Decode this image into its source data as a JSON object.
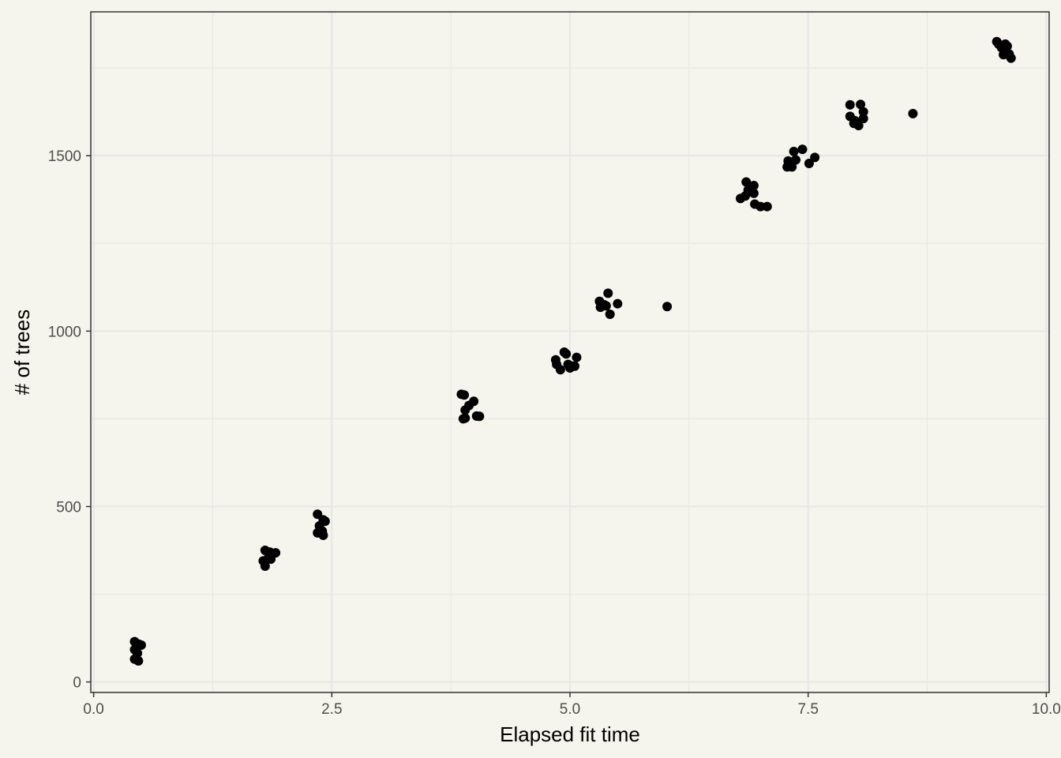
{
  "chart_data": {
    "type": "scatter",
    "title": "",
    "xlabel": "Elapsed fit time",
    "ylabel": "# of trees",
    "xlim": [
      -0.03,
      10.03
    ],
    "ylim": [
      -30,
      1910
    ],
    "x_ticks": [
      0.0,
      2.5,
      5.0,
      7.5,
      10.0
    ],
    "x_tick_labels": [
      "0.0",
      "2.5",
      "5.0",
      "7.5",
      "10.0"
    ],
    "y_ticks": [
      0,
      500,
      1000,
      1500
    ],
    "y_tick_labels": [
      "0",
      "500",
      "1000",
      "1500"
    ],
    "grid": true,
    "legend": "none",
    "colors": {
      "background": "#f5f5ed",
      "panel": "#f5f5ed",
      "grid": "#e6e6e6",
      "points": "#000000",
      "border": "#333333"
    },
    "series": [
      {
        "points": [
          [
            0.43,
            115
          ],
          [
            0.47,
            108
          ],
          [
            0.5,
            105
          ],
          [
            0.43,
            92
          ],
          [
            0.46,
            82
          ],
          [
            0.43,
            65
          ],
          [
            0.47,
            60
          ],
          [
            1.78,
            345
          ],
          [
            1.8,
            330
          ],
          [
            1.8,
            375
          ],
          [
            1.85,
            370
          ],
          [
            1.86,
            350
          ],
          [
            1.91,
            368
          ],
          [
            1.84,
            358
          ],
          [
            2.35,
            478
          ],
          [
            2.37,
            445
          ],
          [
            2.41,
            462
          ],
          [
            2.43,
            458
          ],
          [
            2.35,
            425
          ],
          [
            2.4,
            430
          ],
          [
            2.41,
            418
          ],
          [
            3.86,
            820
          ],
          [
            3.89,
            818
          ],
          [
            3.9,
            775
          ],
          [
            3.94,
            788
          ],
          [
            3.99,
            800
          ],
          [
            3.9,
            752
          ],
          [
            3.88,
            750
          ],
          [
            4.02,
            758
          ],
          [
            4.05,
            757
          ],
          [
            4.85,
            918
          ],
          [
            4.86,
            905
          ],
          [
            4.9,
            890
          ],
          [
            4.94,
            940
          ],
          [
            4.96,
            935
          ],
          [
            4.98,
            905
          ],
          [
            5.0,
            895
          ],
          [
            5.03,
            900
          ],
          [
            5.05,
            900
          ],
          [
            5.07,
            925
          ],
          [
            5.31,
            1085
          ],
          [
            5.32,
            1068
          ],
          [
            5.36,
            1075
          ],
          [
            5.38,
            1072
          ],
          [
            5.4,
            1108
          ],
          [
            5.42,
            1048
          ],
          [
            5.5,
            1078
          ],
          [
            6.02,
            1070
          ],
          [
            6.79,
            1378
          ],
          [
            6.84,
            1385
          ],
          [
            6.85,
            1425
          ],
          [
            6.87,
            1402
          ],
          [
            6.93,
            1415
          ],
          [
            6.93,
            1393
          ],
          [
            6.94,
            1362
          ],
          [
            7.0,
            1355
          ],
          [
            7.07,
            1355
          ],
          [
            7.28,
            1468
          ],
          [
            7.29,
            1485
          ],
          [
            7.33,
            1468
          ],
          [
            7.35,
            1512
          ],
          [
            7.37,
            1488
          ],
          [
            7.44,
            1518
          ],
          [
            7.51,
            1478
          ],
          [
            7.57,
            1495
          ],
          [
            7.94,
            1645
          ],
          [
            7.94,
            1612
          ],
          [
            7.98,
            1592
          ],
          [
            7.99,
            1600
          ],
          [
            8.03,
            1586
          ],
          [
            8.05,
            1646
          ],
          [
            8.08,
            1625
          ],
          [
            8.08,
            1606
          ],
          [
            8.6,
            1620
          ],
          [
            9.48,
            1825
          ],
          [
            9.5,
            1818
          ],
          [
            9.53,
            1808
          ],
          [
            9.55,
            1788
          ],
          [
            9.57,
            1818
          ],
          [
            9.59,
            1812
          ],
          [
            9.61,
            1790
          ],
          [
            9.63,
            1778
          ]
        ]
      }
    ]
  }
}
